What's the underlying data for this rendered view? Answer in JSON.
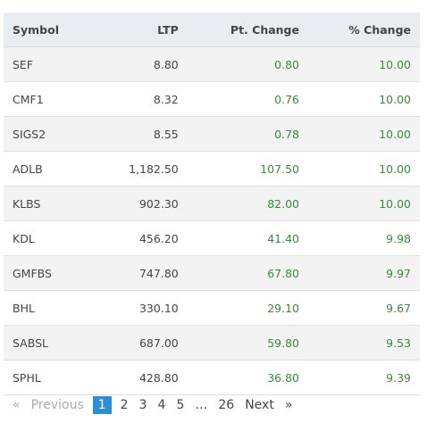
{
  "table": {
    "header": [
      "Symbol",
      "LTP",
      "Pt. Change",
      "% Change"
    ],
    "rows": [
      [
        "SEF",
        "8.80",
        "0.80",
        "10.00"
      ],
      [
        "CMF1",
        "8.32",
        "0.76",
        "10.00"
      ],
      [
        "SIGS2",
        "8.55",
        "0.78",
        "10.00"
      ],
      [
        "ADLB",
        "1,182.50",
        "107.50",
        "10.00"
      ],
      [
        "KLBS",
        "902.30",
        "82.00",
        "10.00"
      ],
      [
        "KDL",
        "456.20",
        "41.40",
        "9.98"
      ],
      [
        "GMFBS",
        "747.80",
        "67.80",
        "9.97"
      ],
      [
        "BHL",
        "330.10",
        "29.10",
        "9.67"
      ],
      [
        "SABSL",
        "687.00",
        "59.80",
        "9.53"
      ],
      [
        "SPHL",
        "428.80",
        "36.80",
        "9.39"
      ]
    ]
  },
  "pagination": {
    "items": [
      "«",
      "Previous",
      "1",
      "2",
      "3",
      "4",
      "5",
      "…",
      "26",
      "Next",
      "»"
    ],
    "active": 2,
    "disabled": [
      0,
      1
    ]
  }
}
